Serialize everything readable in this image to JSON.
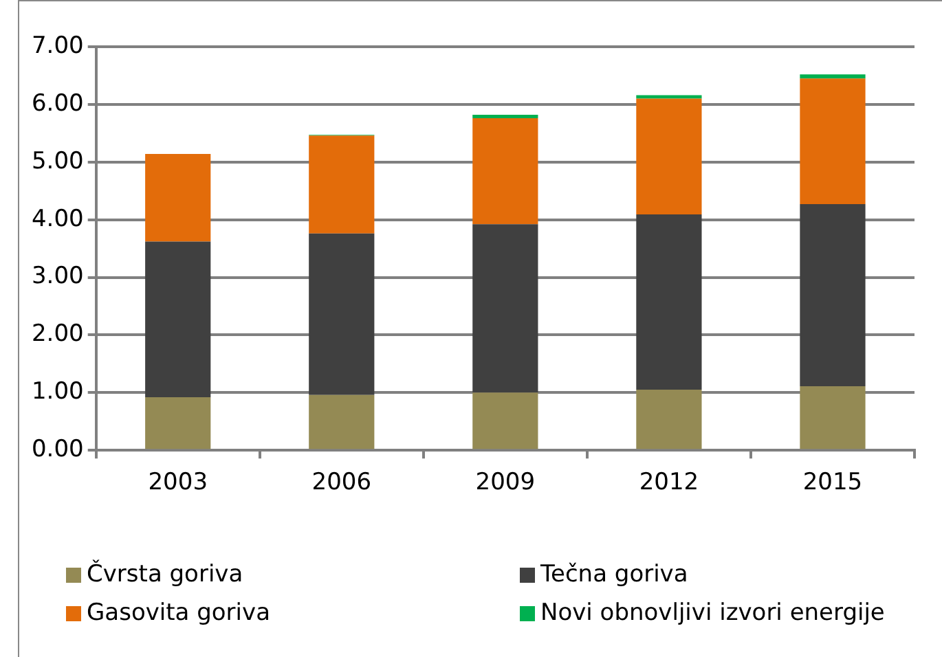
{
  "chart_data": {
    "type": "bar",
    "stacked": true,
    "categories": [
      "2003",
      "2006",
      "2009",
      "2012",
      "2015"
    ],
    "series": [
      {
        "name": "Čvrsta goriva",
        "color": "#948a54",
        "values": [
          0.92,
          0.96,
          1.0,
          1.05,
          1.11
        ]
      },
      {
        "name": "Tečna goriva",
        "color": "#404040",
        "values": [
          2.7,
          2.8,
          2.92,
          3.04,
          3.16
        ]
      },
      {
        "name": "Gasovita goriva",
        "color": "#e36c0a",
        "values": [
          1.52,
          1.7,
          1.84,
          2.01,
          2.18
        ]
      },
      {
        "name": "Novi obnovljivi izvori energije",
        "color": "#00b050",
        "values": [
          0,
          0.01,
          0.06,
          0.06,
          0.07
        ]
      }
    ],
    "ylim": [
      0,
      7
    ],
    "yticks": [
      {
        "value": 0,
        "label": "0.00"
      },
      {
        "value": 1,
        "label": "1.00"
      },
      {
        "value": 2,
        "label": "2.00"
      },
      {
        "value": 3,
        "label": "3.00"
      },
      {
        "value": 4,
        "label": "4.00"
      },
      {
        "value": 5,
        "label": "5.00"
      },
      {
        "value": 6,
        "label": "6.00"
      },
      {
        "value": 7,
        "label": "7.00"
      }
    ],
    "grid": "y",
    "legend": "bottom"
  }
}
